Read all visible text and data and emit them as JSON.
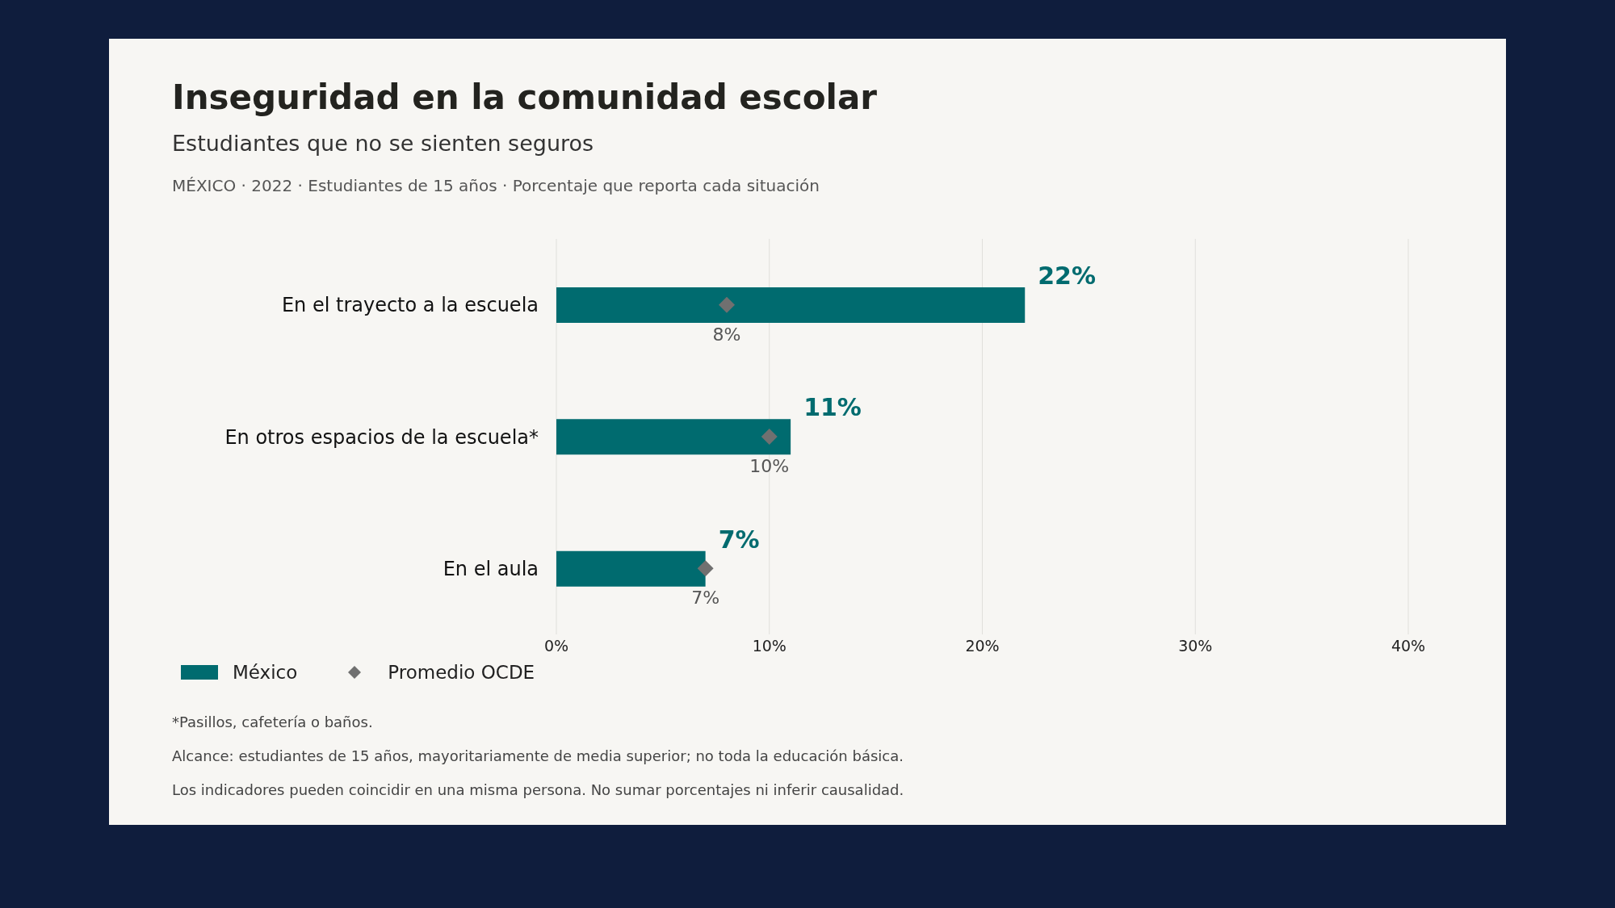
{
  "chart_data": {
    "type": "bar",
    "orientation": "horizontal",
    "title": "Inseguridad en la comunidad escolar",
    "subtitle": "Estudiantes que no se sienten seguros\nMÉXICO · 2022 · Estudiantes de 15 años · Porcentaje que reporta cada situación",
    "categories": [
      "En el trayecto a la escuela",
      "En otros espacios de la escuela*",
      "En el aula"
    ],
    "series": [
      {
        "name": "México",
        "color": "#006b6f",
        "values": [
          22,
          11,
          7
        ],
        "value_labels": [
          "22%",
          "11%",
          "7%"
        ]
      },
      {
        "name": "Promedio OCDE",
        "type": "scatter",
        "marker": "diamond",
        "color": "#707070",
        "x": [
          "En el trayecto a la escuela",
          "En otros espacios de la escuela*",
          "En el aula"
        ],
        "values": [
          8,
          10,
          7
        ],
        "value_labels": [
          "8%",
          "10%",
          "7%"
        ]
      }
    ],
    "xlim": [
      0,
      40
    ],
    "xticks": [
      {
        "value": 0,
        "label": "0%"
      },
      {
        "value": 10,
        "label": "10%"
      },
      {
        "value": 20,
        "label": "20%"
      },
      {
        "value": 30,
        "label": "30%"
      },
      {
        "value": 40,
        "label": "40%"
      }
    ],
    "grid": "x",
    "legend": "bottom",
    "annotations": [
      "*Pasillos, cafetería o baños.",
      "Alcance: estudiantes de 15 años, mayoritariamente de media superior; no toda la educación básica.",
      "Los indicadores pueden coincidir en una misma persona. No sumar porcentajes ni inferir causalidad."
    ]
  }
}
